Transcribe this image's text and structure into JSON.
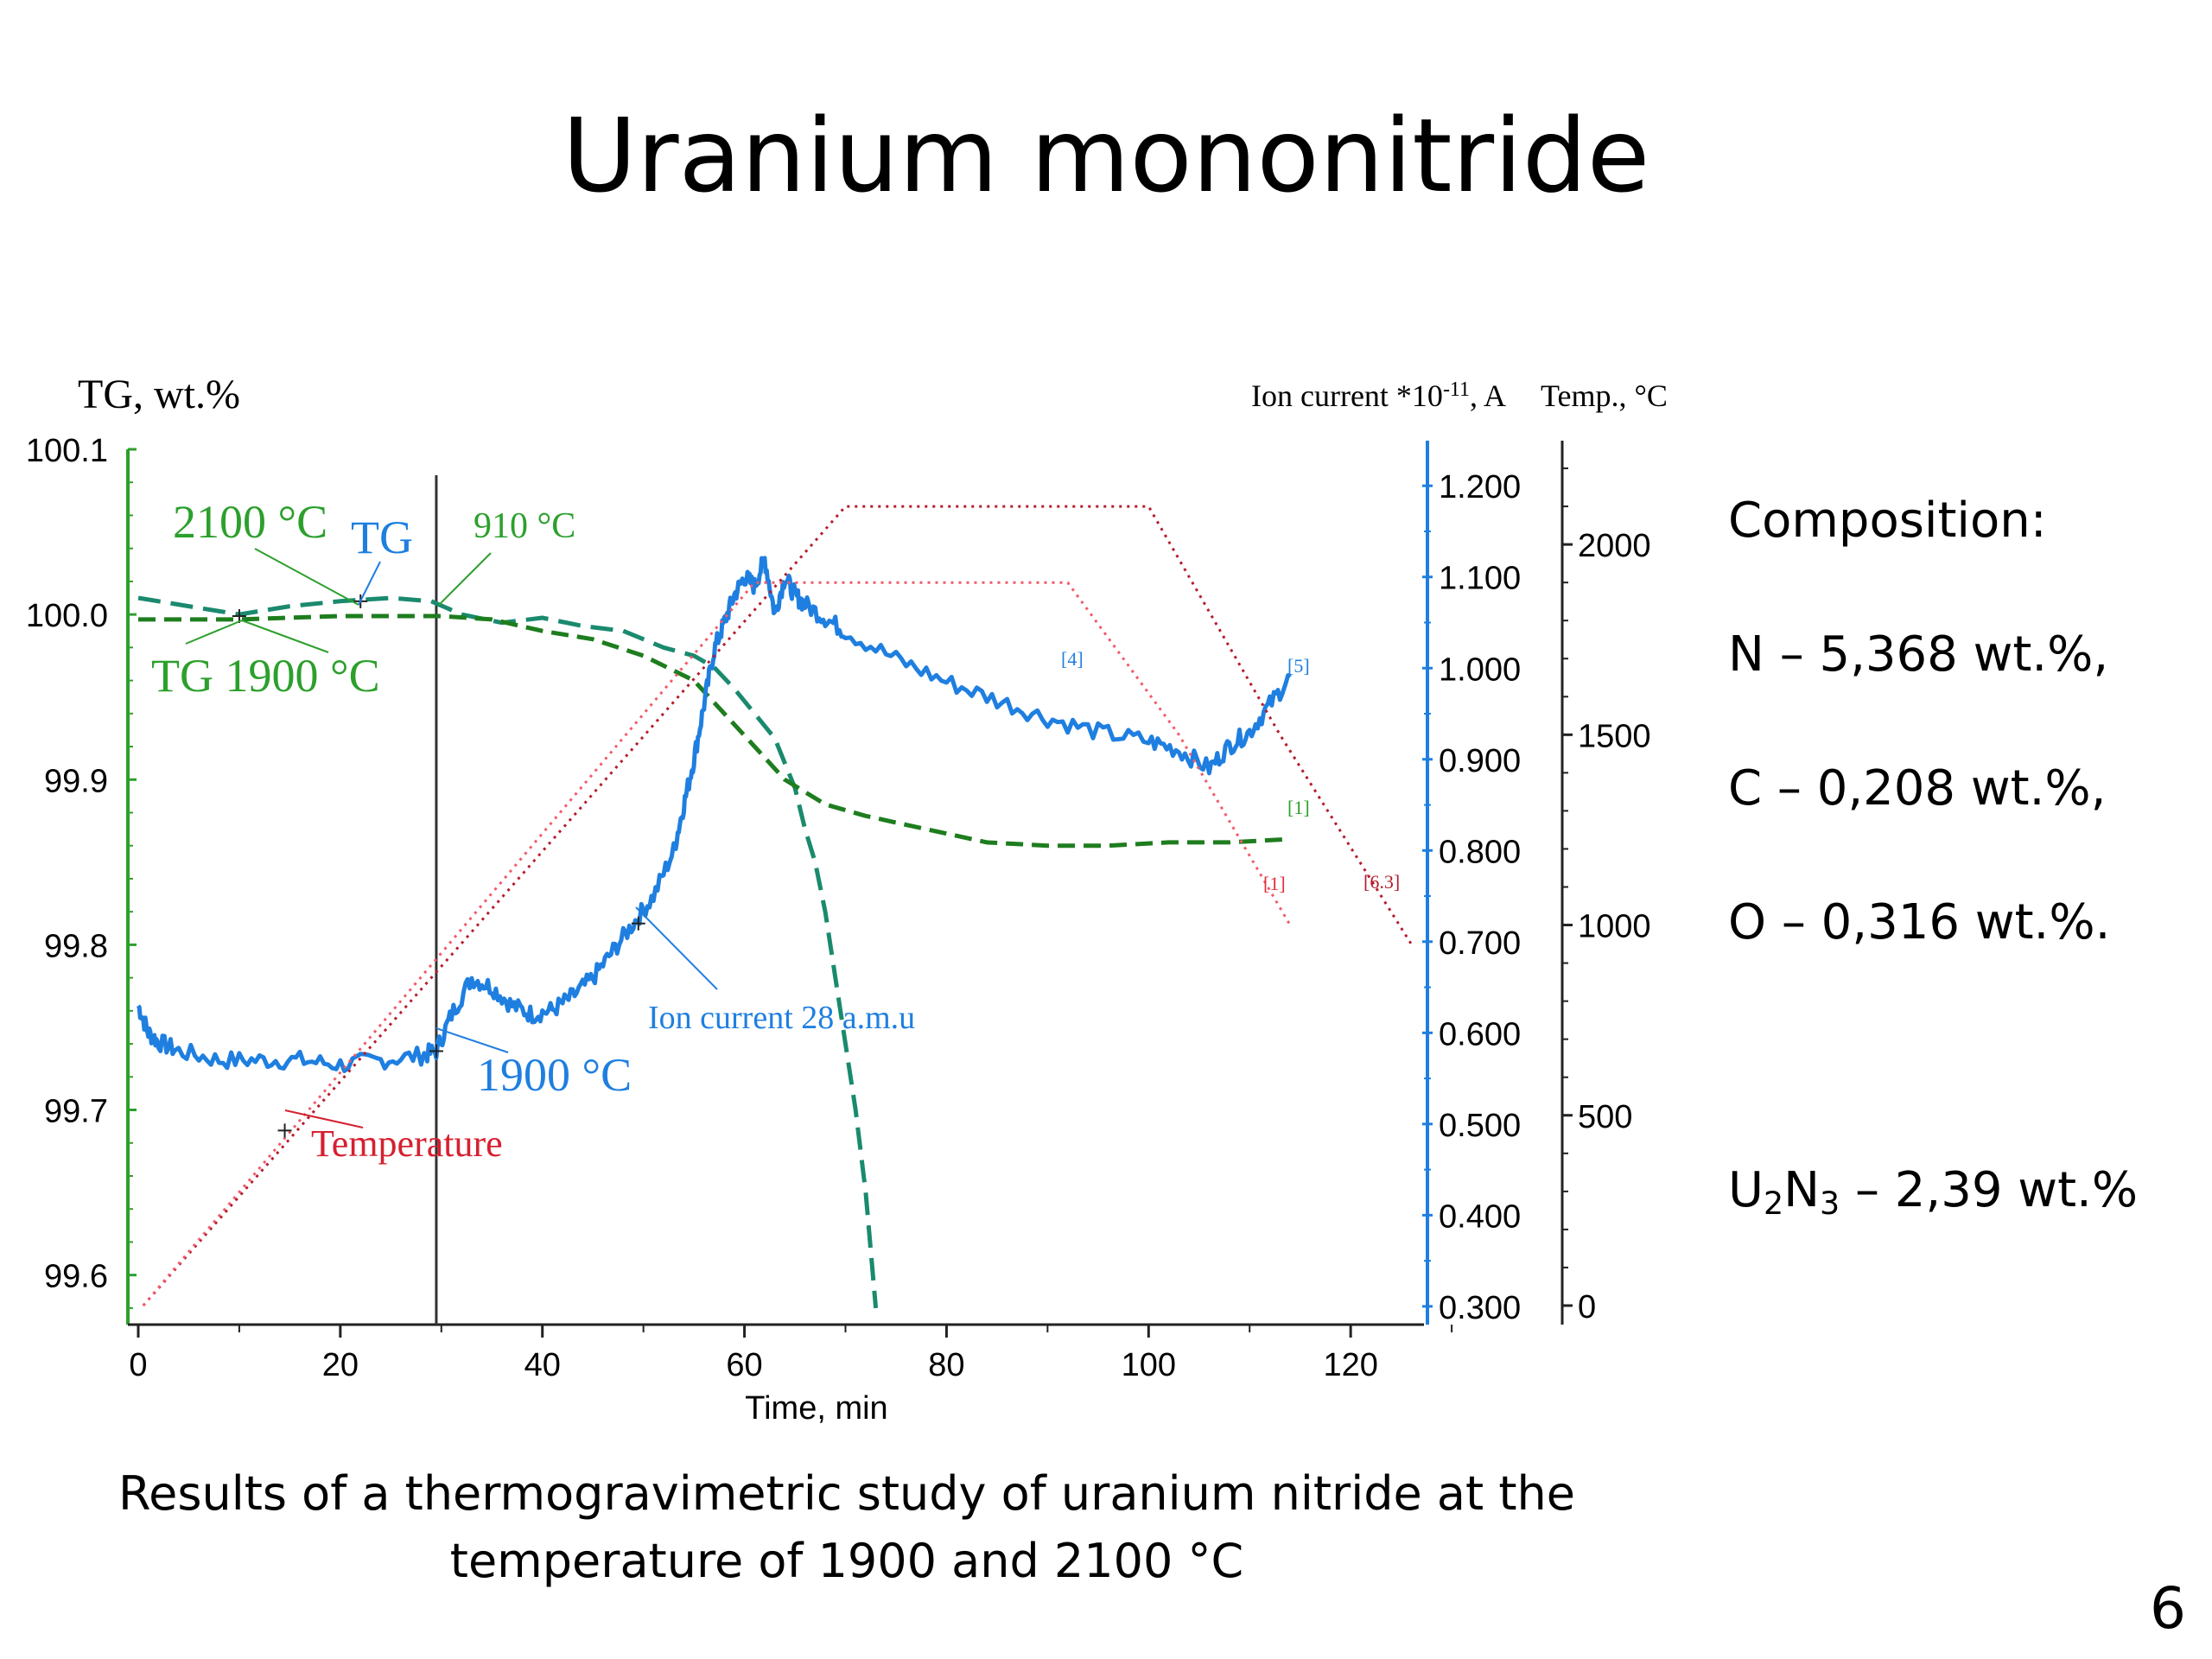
{
  "slide": {
    "title": "Uranium mononitride",
    "caption": "Results of a thermogravimetric study of uranium nitride at the temperature of 1900 and 2100 °C",
    "page_number": "6"
  },
  "composition": {
    "heading": "Composition:",
    "items": [
      {
        "element": "N",
        "text": "N – 5,368 wt.%,"
      },
      {
        "element": "C",
        "text": "C – 0,208 wt.%,"
      },
      {
        "element": "O",
        "text": "O – 0,316 wt.%."
      }
    ],
    "u2n3": {
      "u": "U",
      "u_sub": "2",
      "n": "N",
      "n_sub": "3",
      "rest": " – 2,39 wt.%"
    }
  },
  "chart_data": {
    "type": "line",
    "xlabel": "Time, min",
    "xlim": [
      0,
      127
    ],
    "x_ticks": [
      0,
      20,
      40,
      60,
      80,
      100,
      120
    ],
    "axes": {
      "tg": {
        "label": "TG, wt.%",
        "range": [
          99.57,
          100.1
        ],
        "ticks": [
          "100.1",
          "100.0",
          "99.9",
          "99.8",
          "99.7",
          "99.6"
        ],
        "tick_values": [
          100.1,
          100.0,
          99.9,
          99.8,
          99.7,
          99.6
        ],
        "color": "#2ca02c"
      },
      "ion": {
        "label_main": "Ion current *10",
        "label_exp": "-11",
        "label_unit": ", A",
        "range": [
          0.28,
          1.24
        ],
        "ticks": [
          "1.200",
          "1.100",
          "1.000",
          "0.900",
          "0.800",
          "0.700",
          "0.600",
          "0.500",
          "0.400",
          "0.300"
        ],
        "tick_values": [
          1.2,
          1.1,
          1.0,
          0.9,
          0.8,
          0.7,
          0.6,
          0.5,
          0.4,
          0.3
        ],
        "color": "#1f7fe0"
      },
      "temp": {
        "label": "Temp., °C",
        "range": [
          -50,
          2250
        ],
        "ticks": [
          "2000",
          "1500",
          "1000",
          "500",
          "0"
        ],
        "tick_values": [
          2000,
          1500,
          1000,
          500,
          0
        ],
        "color": "#000000"
      }
    },
    "vertical_marker": {
      "x": 29.5
    },
    "series": [
      {
        "name": "TG 2100 °C",
        "axis": "tg",
        "color": "#1a8a6e",
        "dash": "long",
        "x": [
          0,
          5,
          10,
          15,
          20,
          25,
          29,
          32,
          36,
          40,
          44,
          48,
          52,
          55,
          57,
          59,
          61,
          63,
          64,
          65,
          66,
          67,
          68,
          69,
          70,
          71,
          72,
          73
        ],
        "y": [
          100.01,
          100.005,
          100.0,
          100.005,
          100.008,
          100.01,
          100.008,
          100.0,
          99.995,
          99.998,
          99.993,
          99.99,
          99.98,
          99.975,
          99.968,
          99.955,
          99.94,
          99.925,
          99.91,
          99.895,
          99.87,
          99.85,
          99.82,
          99.78,
          99.74,
          99.7,
          99.65,
          99.58
        ]
      },
      {
        "name": "TG 1900 °C",
        "axis": "tg",
        "color": "#1e7d1e",
        "dash": "medium",
        "x": [
          0,
          10,
          20,
          30,
          35,
          40,
          45,
          50,
          55,
          58,
          61,
          64,
          68,
          72,
          78,
          84,
          90,
          96,
          102,
          108,
          114
        ],
        "y": [
          99.997,
          99.997,
          99.999,
          99.999,
          99.997,
          99.99,
          99.985,
          99.975,
          99.96,
          99.94,
          99.92,
          99.9,
          99.885,
          99.878,
          99.87,
          99.862,
          99.86,
          99.86,
          99.862,
          99.862,
          99.864
        ]
      },
      {
        "name": "Ion current 28 a.m.u",
        "axis": "ion",
        "color": "#1f7fe0",
        "dash": "solid",
        "noise": true,
        "x": [
          0,
          1,
          2,
          4,
          8,
          12,
          16,
          20,
          24,
          28,
          29.5,
          31,
          33,
          35,
          37,
          39,
          41,
          43,
          45,
          47,
          49,
          51,
          53,
          54,
          55,
          56,
          57,
          58,
          59,
          60,
          61,
          62,
          63,
          64,
          65,
          66,
          68,
          70,
          75,
          80,
          85,
          90,
          95,
          100,
          103,
          106,
          108,
          110,
          112,
          114
        ],
        "y": [
          0.63,
          0.6,
          0.59,
          0.58,
          0.57,
          0.57,
          0.57,
          0.565,
          0.57,
          0.575,
          0.58,
          0.62,
          0.66,
          0.65,
          0.63,
          0.62,
          0.625,
          0.64,
          0.66,
          0.69,
          0.72,
          0.75,
          0.8,
          0.85,
          0.9,
          0.96,
          1.02,
          1.05,
          1.08,
          1.1,
          1.09,
          1.12,
          1.06,
          1.1,
          1.08,
          1.07,
          1.055,
          1.04,
          1.01,
          0.985,
          0.965,
          0.945,
          0.93,
          0.92,
          0.91,
          0.89,
          0.915,
          0.93,
          0.96,
          0.99
        ]
      },
      {
        "name": "Temperature 2100 °C",
        "axis": "temp",
        "color": "#b51c2c",
        "dash": "dot",
        "x": [
          0.5,
          70,
          100,
          113,
          126
        ],
        "y": [
          0,
          2100,
          2100,
          1500,
          950
        ]
      },
      {
        "name": "Temperature 1900 °C",
        "axis": "temp",
        "color": "#f25a6a",
        "dash": "dot",
        "x": [
          0.5,
          61,
          92,
          103,
          114
        ],
        "y": [
          0,
          1900,
          1900,
          1500,
          1000
        ]
      }
    ],
    "annotations": {
      "tg2100": {
        "text": "2100 °C",
        "color": "#2ca02c"
      },
      "tg_blue": {
        "text": "TG",
        "color": "#1f7fe0"
      },
      "t910": {
        "text": "910 °C",
        "color": "#2ca02c"
      },
      "tg1900": {
        "text": "TG 1900 °C",
        "color": "#2ca02c"
      },
      "ion_label": {
        "text": "Ion current 28 a.m.u",
        "color": "#1f7fe0"
      },
      "ion1900": {
        "text": "1900 °C",
        "color": "#1f7fe0"
      },
      "temperature": {
        "text": "Temperature",
        "color": "#d62030"
      },
      "mk_blue4": {
        "text": "[4]",
        "color": "#1f7fe0"
      },
      "mk_blue5": {
        "text": "[5]",
        "color": "#1f7fe0"
      },
      "mk_green1": {
        "text": "[1]",
        "color": "#2ca02c"
      },
      "mk_red1": {
        "text": "[1]",
        "color": "#e03040"
      },
      "mk_red63": {
        "text": "[6.3]",
        "color": "#b51c2c"
      }
    }
  }
}
